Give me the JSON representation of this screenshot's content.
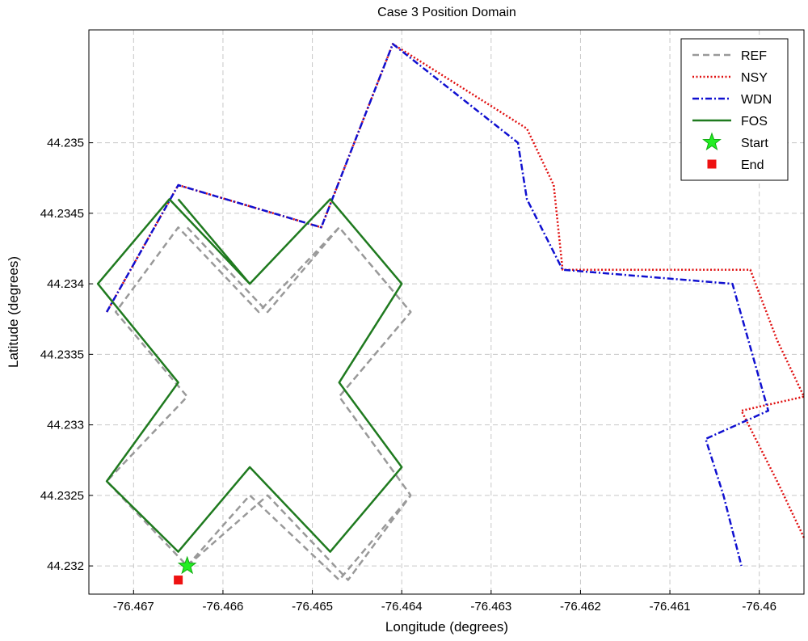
{
  "chart_data": {
    "type": "line",
    "title": "Case 3 Position Domain",
    "xlabel": "Longitude (degrees)",
    "ylabel": "Latitude (degrees)",
    "xlim": [
      -76.4675,
      -76.4595
    ],
    "ylim": [
      44.2318,
      44.2358
    ],
    "xticks": [
      -76.467,
      -76.466,
      -76.465,
      -76.464,
      -76.463,
      -76.462,
      -76.461,
      -76.46
    ],
    "xtick_labels": [
      "-76.467",
      "-76.466",
      "-76.465",
      "-76.464",
      "-76.463",
      "-76.462",
      "-76.461",
      "-76.46"
    ],
    "yticks": [
      44.232,
      44.2325,
      44.233,
      44.2335,
      44.234,
      44.2345,
      44.235
    ],
    "ytick_labels": [
      "44.232",
      "44.2325",
      "44.233",
      "44.2335",
      "44.234",
      "44.2345",
      "44.235"
    ],
    "grid": true,
    "legend_position": "top-right",
    "series": [
      {
        "name": "REF",
        "color": "#999999",
        "style": "dashed",
        "x": [
          -76.4664,
          -76.4657,
          -76.4647,
          -76.4639,
          -76.4647,
          -76.4639,
          -76.4647,
          -76.4656,
          -76.4665,
          -76.4672,
          -76.4664,
          -76.4673,
          -76.4664,
          -76.4655,
          -76.4646,
          -76.4639,
          -76.4647,
          -76.4639,
          -76.4647,
          -76.4655,
          -76.4664
        ],
        "y": [
          44.232,
          44.2325,
          44.2319,
          44.2325,
          44.2332,
          44.2338,
          44.2344,
          44.2338,
          44.2344,
          44.2338,
          44.2332,
          44.2326,
          44.232,
          44.2325,
          44.2319,
          44.2325,
          44.2332,
          44.2338,
          44.2344,
          44.2338,
          44.2344
        ]
      },
      {
        "name": "NSY",
        "color": "#e01010",
        "style": "dotted",
        "x": [
          -76.4673,
          -76.4665,
          -76.4649,
          -76.4641,
          -76.4626,
          -76.4623,
          -76.4622,
          -76.4601,
          -76.4598,
          -76.4595,
          -76.4602,
          -76.4598,
          -76.4595
        ],
        "y": [
          44.2338,
          44.2347,
          44.2344,
          44.2357,
          44.2351,
          44.2347,
          44.2341,
          44.2341,
          44.2336,
          44.2332,
          44.2331,
          44.2326,
          44.2322
        ]
      },
      {
        "name": "WDN",
        "color": "#1010d0",
        "style": "dashdot",
        "x": [
          -76.4673,
          -76.4665,
          -76.4649,
          -76.4641,
          -76.4627,
          -76.4626,
          -76.4622,
          -76.4603,
          -76.4599,
          -76.4606,
          -76.4604,
          -76.4602
        ],
        "y": [
          44.2338,
          44.2347,
          44.2344,
          44.2357,
          44.235,
          44.2346,
          44.2341,
          44.234,
          44.2331,
          44.2329,
          44.2325,
          44.232
        ]
      },
      {
        "name": "FOS",
        "color": "#1f7a1f",
        "style": "solid",
        "x": [
          -76.4665,
          -76.4657,
          -76.4648,
          -76.464,
          -76.4647,
          -76.464,
          -76.4648,
          -76.4657,
          -76.4666,
          -76.4674,
          -76.4665,
          -76.4673,
          -76.4665,
          -76.4657,
          -76.4648,
          -76.464,
          -76.4647,
          -76.464,
          -76.4648,
          -76.4657,
          -76.4665
        ],
        "y": [
          44.2321,
          44.2327,
          44.2321,
          44.2327,
          44.2333,
          44.234,
          44.2346,
          44.234,
          44.2346,
          44.234,
          44.2333,
          44.2326,
          44.2321,
          44.2327,
          44.2321,
          44.2327,
          44.2333,
          44.234,
          44.2346,
          44.234,
          44.2346
        ]
      }
    ],
    "markers": [
      {
        "name": "Start",
        "shape": "star",
        "color": "#22ee22",
        "x": -76.4664,
        "y": 44.232
      },
      {
        "name": "End",
        "shape": "square",
        "color": "#ee1111",
        "x": -76.4665,
        "y": 44.2319
      }
    ],
    "legend": [
      "REF",
      "NSY",
      "WDN",
      "FOS",
      "Start",
      "End"
    ]
  }
}
